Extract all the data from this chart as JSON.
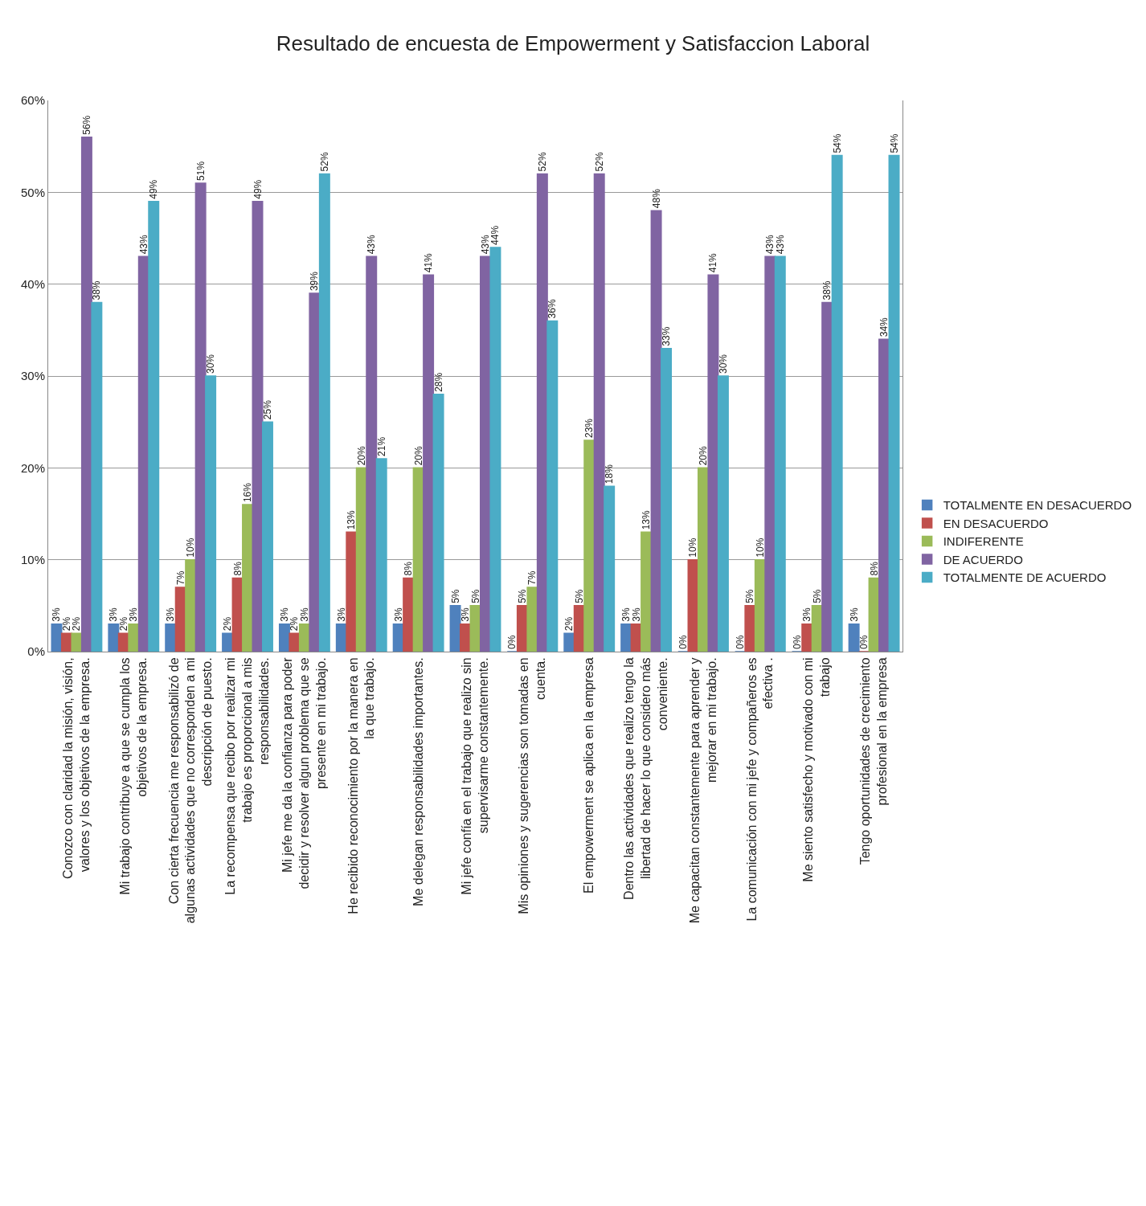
{
  "chart_data": {
    "type": "bar",
    "title": "Resultado de encuesta de Empowerment y Satisfaccion Laboral",
    "categories": [
      "Conozco con claridad la misión, visión, valores y los objetivos de la empresa.",
      "Mi trabajo contribuye a que se cumpla los objetivos de la empresa.",
      "Con cierta frecuencia me responsabilizó de algunas actividades que no corresponden a mi descripción de puesto.",
      "La recompensa que recibo por realizar mi trabajo es proporcional a mis responsabilidades.",
      "Mi jefe me da la confianza para poder decidir y resolver algun problema que se presente en mi trabajo.",
      "He recibido reconocimiento por la manera en la que trabajo.",
      "Me delegan responsabilidades importantes.",
      "Mi jefe confía en el trabajo que realizo sin supervisarme constantemente.",
      "Mis opiniones y sugerencias son tomadas en cuenta.",
      "El empowerment se aplica en la empresa",
      "Dentro las actividades que realizo tengo la libertad de hacer lo que considero más conveniente.",
      "Me capacitan constantemente para aprender y mejorar en mi trabajo.",
      "La comunicación con mi jefe y compañeros es efectiva .",
      "Me siento satisfecho y motivado con mi trabajo",
      "Tengo oportunidades de crecimiento profesional en la empresa"
    ],
    "series": [
      {
        "name": "TOTALMENTE EN DESACUERDO",
        "color": "#4f81bd",
        "values": [
          3,
          3,
          3,
          2,
          3,
          3,
          3,
          5,
          0,
          2,
          3,
          0,
          0,
          0,
          3
        ],
        "value_labels": [
          "3%",
          "3%",
          "3%",
          "2%",
          "3%",
          "3%",
          "3%",
          "5%",
          "0%",
          "2%",
          "3%",
          "0%",
          "0%",
          "0%",
          "3%"
        ]
      },
      {
        "name": "EN DESACUERDO",
        "color": "#c0504d",
        "values": [
          2,
          2,
          7,
          8,
          2,
          13,
          8,
          3,
          5,
          5,
          3,
          10,
          5,
          3,
          0
        ],
        "value_labels": [
          "2%",
          "2%",
          "7%",
          "8%",
          "2%",
          "13%",
          "8%",
          "3%",
          "5%",
          "5%",
          "3%",
          "10%",
          "5%",
          "3%",
          "0%"
        ]
      },
      {
        "name": "INDIFERENTE",
        "color": "#9bbb59",
        "values": [
          2,
          3,
          10,
          16,
          3,
          20,
          20,
          5,
          7,
          23,
          13,
          20,
          10,
          5,
          8
        ],
        "value_labels": [
          "2%",
          "3%",
          "10%",
          "16%",
          "3%",
          "20%",
          "20%",
          "5%",
          "7%",
          "23%",
          "13%",
          "20%",
          "10%",
          "5%",
          "8%"
        ]
      },
      {
        "name": "DE ACUERDO",
        "color": "#8064a2",
        "values": [
          56,
          43,
          51,
          49,
          39,
          43,
          41,
          43,
          52,
          52,
          48,
          41,
          43,
          38,
          34
        ],
        "value_labels": [
          "56%",
          "43%",
          "51%",
          "49%",
          "39%",
          "43%",
          "41%",
          "43%",
          "52%",
          "52%",
          "48%",
          "41%",
          "43%",
          "38%",
          "34%"
        ]
      },
      {
        "name": "TOTALMENTE DE ACUERDO",
        "color": "#4bacc6",
        "values": [
          38,
          49,
          30,
          25,
          52,
          21,
          28,
          44,
          36,
          18,
          33,
          30,
          43,
          54,
          54
        ],
        "value_labels": [
          "38%",
          "49%",
          "30%",
          "25%",
          "52%",
          "21%",
          "28%",
          "44%",
          "36%",
          "18%",
          "33%",
          "30%",
          "43%",
          "54%",
          "54%"
        ]
      }
    ],
    "ylim": [
      0,
      60
    ],
    "yticks": [
      {
        "value": 0,
        "label": "0%"
      },
      {
        "value": 10,
        "label": "10%"
      },
      {
        "value": 20,
        "label": "20%"
      },
      {
        "value": 30,
        "label": "30%"
      },
      {
        "value": 40,
        "label": "40%"
      },
      {
        "value": 50,
        "label": "50%"
      },
      {
        "value": 60,
        "label": "60%"
      }
    ],
    "grid": "y",
    "legend": "right"
  }
}
